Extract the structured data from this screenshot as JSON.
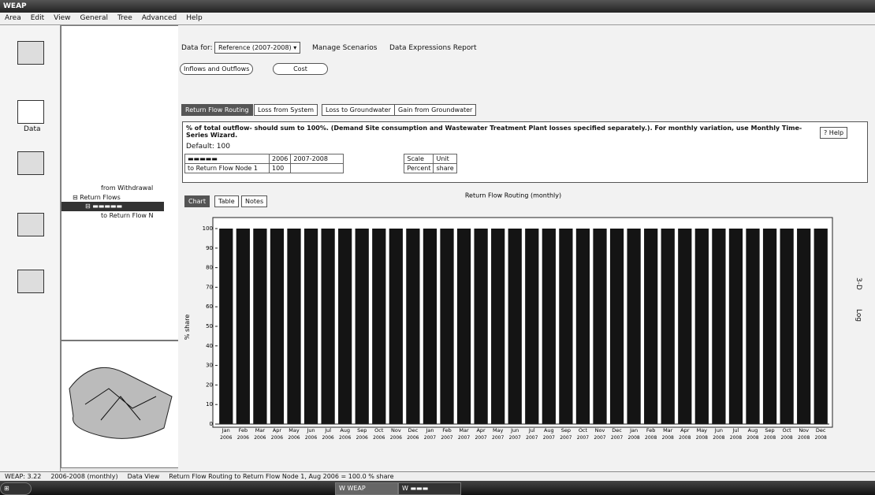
{
  "window": {
    "title": "WEAP"
  },
  "menu": [
    "Area",
    "Edit",
    "View",
    "General",
    "Tree",
    "Advanced",
    "Help"
  ],
  "sidebar": {
    "data_label": "Data"
  },
  "tree": [
    "from Withdrawal",
    "Return Flows",
    "to Return Flow N"
  ],
  "toolbar": {
    "data_for_label": "Data for:",
    "scenario": "Reference (2007-2008)",
    "manage": "Manage Scenarios",
    "report": "Data Expressions Report"
  },
  "section_tabs": [
    "Inflows and Outflows",
    "Cost"
  ],
  "variable_tabs": [
    "Return Flow Routing",
    "Loss from System",
    "Loss to Groundwater",
    "Gain from Groundwater"
  ],
  "description": "% of total outflow- should sum to 100%. (Demand Site consumption and Wastewater Treatment Plant losses specified separately.). For monthly variation, use Monthly Time-Series Wizard.",
  "default": "Default: 100",
  "help": "Help",
  "table": {
    "header": [
      "2006",
      "2007-2008",
      "Scale",
      "Unit"
    ],
    "row": [
      "to Return Flow Node 1",
      "100",
      "Percent",
      "share"
    ]
  },
  "view_tabs": [
    "Chart",
    "Table",
    "Notes"
  ],
  "chart_tools": [
    "3-D",
    "Log"
  ],
  "chart_data": {
    "type": "bar",
    "title": "Return Flow Routing (monthly)",
    "y_label": "% share",
    "color": "#141414",
    "categories": [
      "Jan",
      "Feb",
      "Mar",
      "Apr",
      "May",
      "Jun",
      "Jul",
      "Aug",
      "Sep",
      "Oct",
      "Nov",
      "Dec",
      "Jan",
      "Feb",
      "Mar",
      "Apr",
      "May",
      "Jun",
      "Jul",
      "Aug",
      "Sep",
      "Oct",
      "Nov",
      "Dec",
      "Jan",
      "Feb",
      "Mar",
      "Apr",
      "May",
      "Jun",
      "Jul",
      "Aug",
      "Sep",
      "Oct",
      "Nov",
      "Dec"
    ],
    "category_years": [
      "2006",
      "2006",
      "2006",
      "2006",
      "2006",
      "2006",
      "2006",
      "2006",
      "2006",
      "2006",
      "2006",
      "2006",
      "2007",
      "2007",
      "2007",
      "2007",
      "2007",
      "2007",
      "2007",
      "2007",
      "2007",
      "2007",
      "2007",
      "2007",
      "2008",
      "2008",
      "2008",
      "2008",
      "2008",
      "2008",
      "2008",
      "2008",
      "2008",
      "2008",
      "2008",
      "2008"
    ],
    "values": [
      100,
      100,
      100,
      100,
      100,
      100,
      100,
      100,
      100,
      100,
      100,
      100,
      100,
      100,
      100,
      100,
      100,
      100,
      100,
      100,
      100,
      100,
      100,
      100,
      100,
      100,
      100,
      100,
      100,
      100,
      100,
      100,
      100,
      100,
      100,
      100
    ],
    "ylim": [
      0,
      100
    ],
    "yticks": [
      0,
      10,
      20,
      30,
      40,
      50,
      60,
      70,
      80,
      90,
      100
    ],
    "grid": false
  },
  "status": [
    "WEAP: 3.22",
    "2006-2008 (monthly)",
    "Data View",
    "Return Flow Routing to Return Flow Node 1, Aug 2006 = 100.0 % share"
  ],
  "taskbar": [
    "WEAP"
  ]
}
